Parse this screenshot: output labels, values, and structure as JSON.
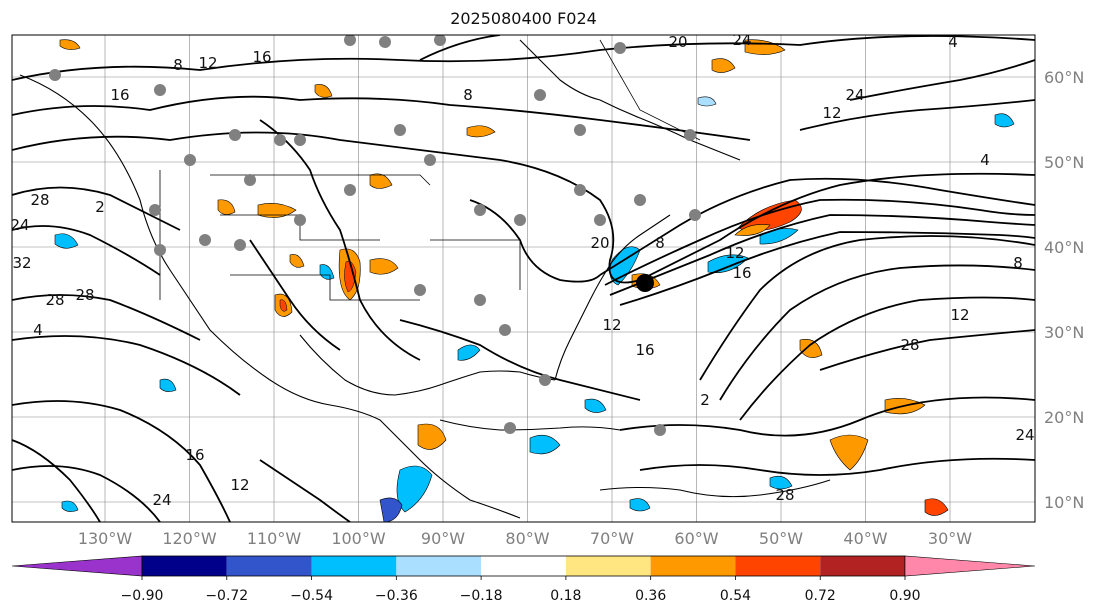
{
  "title": "2025080400 F024",
  "map": {
    "lon_labels": [
      {
        "text": "130°W",
        "lon": -130
      },
      {
        "text": "120°W",
        "lon": -120
      },
      {
        "text": "110°W",
        "lon": -110
      },
      {
        "text": "100°W",
        "lon": -100
      },
      {
        "text": "90°W",
        "lon": -90
      },
      {
        "text": "80°W",
        "lon": -80
      },
      {
        "text": "70°W",
        "lon": -70
      },
      {
        "text": "60°W",
        "lon": -60
      },
      {
        "text": "50°W",
        "lon": -50
      },
      {
        "text": "40°W",
        "lon": -40
      },
      {
        "text": "30°W",
        "lon": -30
      }
    ],
    "lat_labels": [
      {
        "text": "60°N",
        "lat": 60
      },
      {
        "text": "50°N",
        "lat": 50
      },
      {
        "text": "40°N",
        "lat": 40
      },
      {
        "text": "30°N",
        "lat": 30
      },
      {
        "text": "20°N",
        "lat": 20
      },
      {
        "text": "10°N",
        "lat": 10
      }
    ],
    "contour_labels": [
      "12",
      "16",
      "4",
      "8",
      "12",
      "16",
      "20",
      "24",
      "28",
      "2",
      "24",
      "32",
      "28",
      "28",
      "4",
      "8",
      "12",
      "16",
      "8",
      "12",
      "16",
      "20",
      "24",
      "28",
      "12",
      "4",
      "8",
      "24",
      "2",
      "28",
      "24",
      "12",
      "16"
    ],
    "colors": {
      "contour": "#000000",
      "grid": "#888888",
      "coast": "#000000"
    }
  },
  "colorbar": {
    "ticks": [
      "−0.90",
      "−0.72",
      "−0.54",
      "−0.36",
      "−0.18",
      "0.18",
      "0.36",
      "0.54",
      "0.72",
      "0.90"
    ],
    "colors": [
      "#9933cc",
      "#00008b",
      "#3355cc",
      "#00bfff",
      "#aadfff",
      "#ffffff",
      "#ffe680",
      "#ff9900",
      "#ff4400",
      "#b22222",
      "#ff88aa"
    ]
  }
}
